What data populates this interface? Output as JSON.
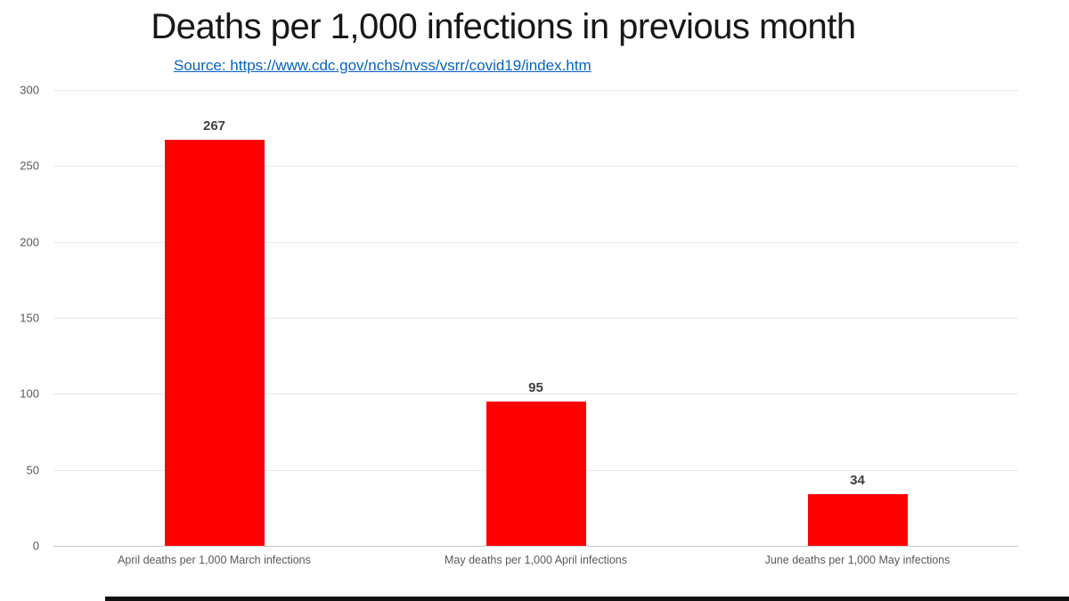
{
  "chart_data": {
    "type": "bar",
    "title": "Deaths per 1,000 infections in previous month",
    "source": "Source: https://www.cdc.gov/nchs/nvss/vsrr/covid19/index.htm",
    "categories": [
      "April deaths per 1,000 March infections",
      "May deaths per 1,000 April infections",
      "June deaths per 1,000 May infections"
    ],
    "values": [
      267,
      95,
      34
    ],
    "xlabel": "",
    "ylabel": "",
    "ylim": [
      0,
      300
    ],
    "yticks": [
      0,
      50,
      100,
      150,
      200,
      250,
      300
    ],
    "bar_color": "#FF0000",
    "grid": true,
    "legend": false
  }
}
